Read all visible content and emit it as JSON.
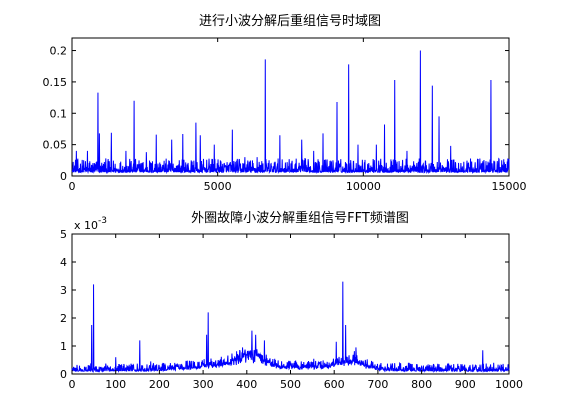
{
  "chart_data": [
    {
      "type": "line",
      "title": "进行小波分解后重组信号时域图",
      "xlabel": "",
      "ylabel": "",
      "xlim": [
        0,
        15000
      ],
      "ylim": [
        0,
        0.22
      ],
      "x_ticks": [
        0,
        5000,
        10000,
        15000
      ],
      "x_tick_labels": [
        "0",
        "5000",
        "10000",
        "15000"
      ],
      "y_ticks": [
        0,
        0.05,
        0.1,
        0.15,
        0.2
      ],
      "y_tick_labels": [
        "0",
        "0.05",
        "0.1",
        "0.15",
        "0.2"
      ],
      "line_color": "#0000ff",
      "grid": false,
      "baseline": 0.006,
      "noise_amplitude": 0.022,
      "sample_count": 1500,
      "peaks": [
        {
          "x": 150,
          "y": 0.04
        },
        {
          "x": 530,
          "y": 0.04
        },
        {
          "x": 890,
          "y": 0.133
        },
        {
          "x": 940,
          "y": 0.068
        },
        {
          "x": 1350,
          "y": 0.069
        },
        {
          "x": 1850,
          "y": 0.04
        },
        {
          "x": 2130,
          "y": 0.12
        },
        {
          "x": 2550,
          "y": 0.038
        },
        {
          "x": 2890,
          "y": 0.066
        },
        {
          "x": 3420,
          "y": 0.058
        },
        {
          "x": 3800,
          "y": 0.067
        },
        {
          "x": 4250,
          "y": 0.085
        },
        {
          "x": 4400,
          "y": 0.065
        },
        {
          "x": 4880,
          "y": 0.05
        },
        {
          "x": 5500,
          "y": 0.074
        },
        {
          "x": 5930,
          "y": 0.03
        },
        {
          "x": 6350,
          "y": 0.03
        },
        {
          "x": 6630,
          "y": 0.186
        },
        {
          "x": 7130,
          "y": 0.065
        },
        {
          "x": 7520,
          "y": 0.02
        },
        {
          "x": 7890,
          "y": 0.058
        },
        {
          "x": 8300,
          "y": 0.04
        },
        {
          "x": 8620,
          "y": 0.068
        },
        {
          "x": 9100,
          "y": 0.118
        },
        {
          "x": 9500,
          "y": 0.178
        },
        {
          "x": 9820,
          "y": 0.05
        },
        {
          "x": 10450,
          "y": 0.05
        },
        {
          "x": 10730,
          "y": 0.082
        },
        {
          "x": 11080,
          "y": 0.153
        },
        {
          "x": 11500,
          "y": 0.04
        },
        {
          "x": 11960,
          "y": 0.2
        },
        {
          "x": 12370,
          "y": 0.144
        },
        {
          "x": 12600,
          "y": 0.095
        },
        {
          "x": 13000,
          "y": 0.048
        },
        {
          "x": 13600,
          "y": 0.02
        },
        {
          "x": 14050,
          "y": 0.02
        },
        {
          "x": 14380,
          "y": 0.153
        },
        {
          "x": 14750,
          "y": 0.025
        }
      ]
    },
    {
      "type": "line",
      "title": "外圈故障小波分解重组信号FFT频谱图",
      "xlabel": "",
      "ylabel": "",
      "scale_exponent_label": "x 10",
      "scale_exponent_power": "-3",
      "xlim": [
        0,
        1000
      ],
      "ylim": [
        0,
        5
      ],
      "x_ticks": [
        0,
        100,
        200,
        300,
        400,
        500,
        600,
        700,
        800,
        900,
        1000
      ],
      "x_tick_labels": [
        "0",
        "100",
        "200",
        "300",
        "400",
        "500",
        "600",
        "700",
        "800",
        "900",
        "1000"
      ],
      "y_ticks": [
        0,
        1,
        2,
        3,
        4,
        5
      ],
      "y_tick_labels": [
        "0",
        "1",
        "2",
        "3",
        "4",
        "5"
      ],
      "line_color": "#0000ff",
      "grid": false,
      "baseline": 0.1,
      "noise_amplitude": 0.28,
      "sample_count": 1400,
      "bumps": [
        {
          "center": 410,
          "width": 45,
          "height": 0.45
        },
        {
          "center": 320,
          "width": 80,
          "height": 0.15
        },
        {
          "center": 560,
          "width": 120,
          "height": 0.12
        },
        {
          "center": 640,
          "width": 40,
          "height": 0.25
        }
      ],
      "peaks": [
        {
          "x": 45,
          "y": 1.75
        },
        {
          "x": 49,
          "y": 3.2
        },
        {
          "x": 100,
          "y": 0.6
        },
        {
          "x": 155,
          "y": 1.2
        },
        {
          "x": 180,
          "y": 0.45
        },
        {
          "x": 262,
          "y": 0.45
        },
        {
          "x": 308,
          "y": 1.4
        },
        {
          "x": 312,
          "y": 2.2
        },
        {
          "x": 390,
          "y": 0.95
        },
        {
          "x": 412,
          "y": 1.55
        },
        {
          "x": 420,
          "y": 1.4
        },
        {
          "x": 440,
          "y": 1.2
        },
        {
          "x": 465,
          "y": 0.5
        },
        {
          "x": 605,
          "y": 1.15
        },
        {
          "x": 620,
          "y": 3.3
        },
        {
          "x": 626,
          "y": 1.75
        },
        {
          "x": 650,
          "y": 0.95
        },
        {
          "x": 770,
          "y": 0.4
        },
        {
          "x": 840,
          "y": 0.35
        },
        {
          "x": 940,
          "y": 0.85
        },
        {
          "x": 965,
          "y": 0.4
        }
      ]
    }
  ]
}
